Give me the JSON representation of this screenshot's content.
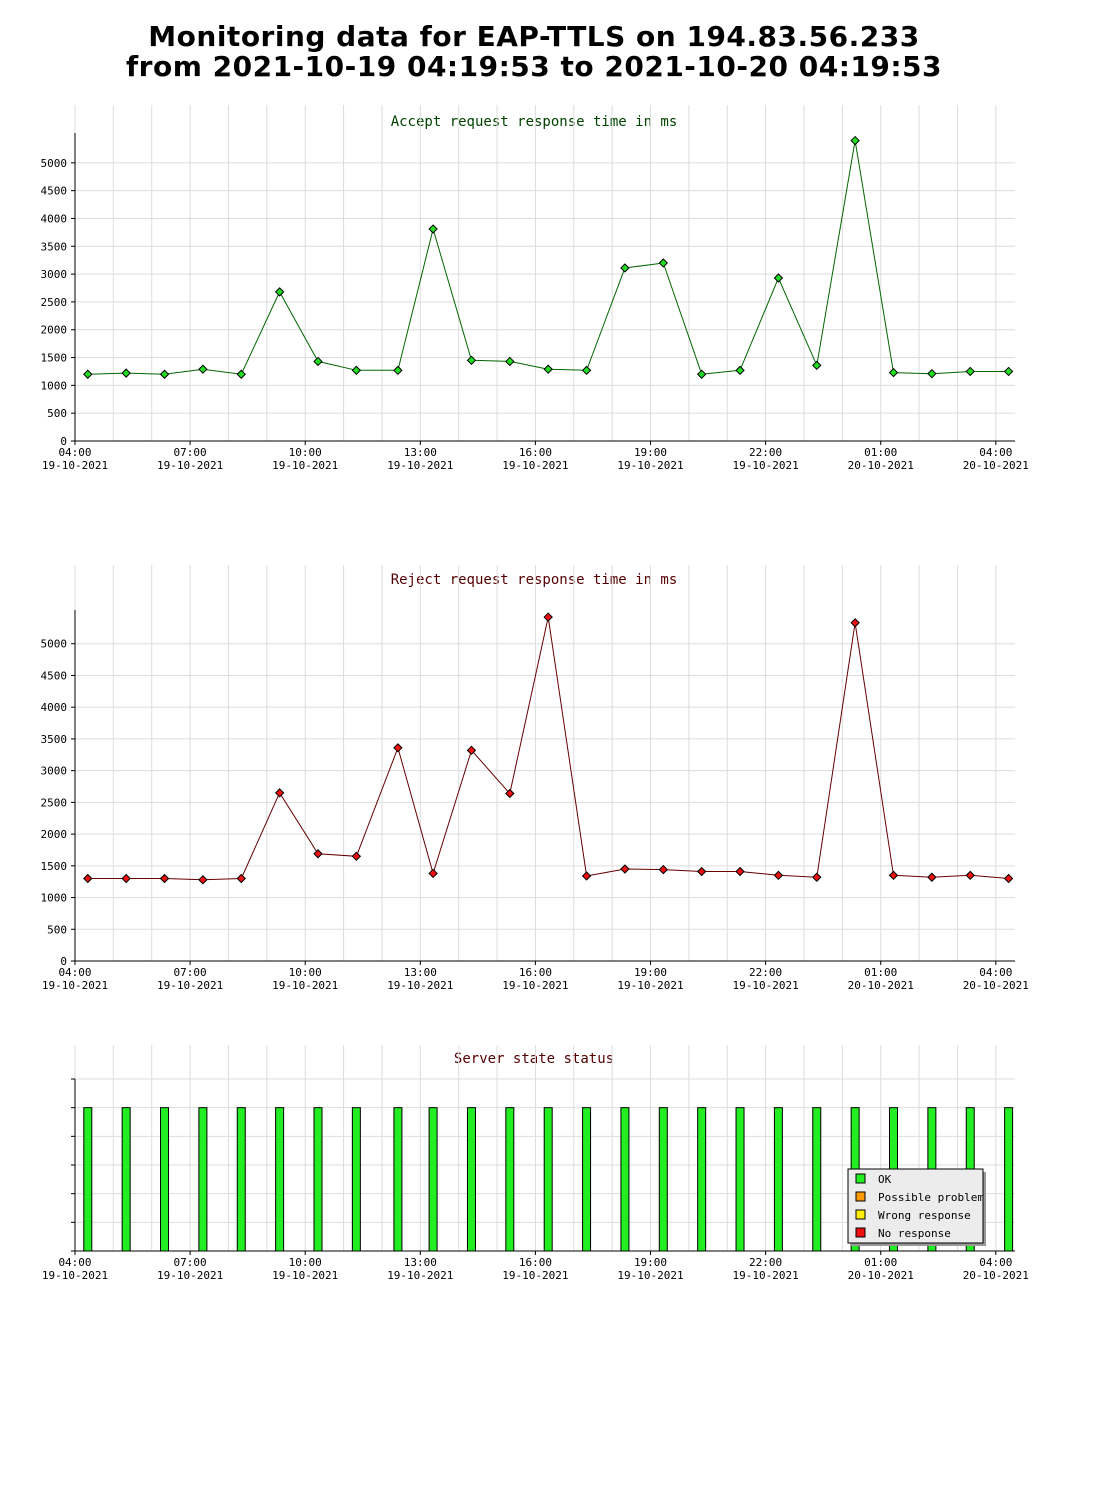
{
  "page": {
    "title_line1": "Monitoring data for EAP-TTLS on 194.83.56.233",
    "title_line2": "from 2021-10-19 04:19:53 to 2021-10-20 04:19:53"
  },
  "x_axis": {
    "tick_times": [
      "04:00",
      "07:00",
      "10:00",
      "13:00",
      "16:00",
      "19:00",
      "22:00",
      "01:00",
      "04:00"
    ],
    "tick_dates": [
      "19-10-2021",
      "19-10-2021",
      "19-10-2021",
      "19-10-2021",
      "19-10-2021",
      "19-10-2021",
      "19-10-2021",
      "20-10-2021",
      "20-10-2021"
    ]
  },
  "colors": {
    "accept_line": "#006600",
    "accept_marker": "#22dd22",
    "reject_line": "#660000",
    "reject_marker": "#ee1111",
    "accept_title": "#004400",
    "reject_title": "#550000",
    "status_title": "#550000",
    "ok": "#22ee22",
    "possible_problem": "#ff9900",
    "wrong_response": "#ffee00",
    "no_response": "#ee1111",
    "grid": "#dddddd"
  },
  "chart_data": [
    {
      "type": "line",
      "title": "Accept request response time in ms",
      "xlabel": "",
      "ylabel": "",
      "ylim": [
        0,
        5500
      ],
      "yticks": [
        0,
        500,
        1000,
        1500,
        2000,
        2500,
        3000,
        3500,
        4000,
        4500,
        5000
      ],
      "grid": true,
      "x": [
        "2021-10-19 04:20",
        "2021-10-19 05:20",
        "2021-10-19 06:20",
        "2021-10-19 07:20",
        "2021-10-19 08:20",
        "2021-10-19 09:20",
        "2021-10-19 10:20",
        "2021-10-19 11:20",
        "2021-10-19 12:25",
        "2021-10-19 13:20",
        "2021-10-19 14:20",
        "2021-10-19 15:20",
        "2021-10-19 16:20",
        "2021-10-19 17:20",
        "2021-10-19 18:20",
        "2021-10-19 19:20",
        "2021-10-19 20:20",
        "2021-10-19 21:20",
        "2021-10-19 22:20",
        "2021-10-19 23:20",
        "2021-10-20 00:20",
        "2021-10-20 01:20",
        "2021-10-20 02:20",
        "2021-10-20 03:20",
        "2021-10-20 04:20"
      ],
      "values": [
        1200,
        1220,
        1200,
        1290,
        1200,
        2680,
        1430,
        1270,
        1270,
        3810,
        1450,
        1430,
        1290,
        1270,
        3110,
        3200,
        1200,
        1270,
        2930,
        1360,
        5400,
        1230,
        1210,
        1250,
        1250
      ]
    },
    {
      "type": "line",
      "title": "Reject request response time in ms",
      "xlabel": "",
      "ylabel": "",
      "ylim": [
        0,
        5500
      ],
      "yticks": [
        0,
        500,
        1000,
        1500,
        2000,
        2500,
        3000,
        3500,
        4000,
        4500,
        5000
      ],
      "grid": true,
      "x": [
        "2021-10-19 04:20",
        "2021-10-19 05:20",
        "2021-10-19 06:20",
        "2021-10-19 07:20",
        "2021-10-19 08:20",
        "2021-10-19 09:20",
        "2021-10-19 10:20",
        "2021-10-19 11:20",
        "2021-10-19 12:25",
        "2021-10-19 13:20",
        "2021-10-19 14:20",
        "2021-10-19 15:20",
        "2021-10-19 16:20",
        "2021-10-19 17:20",
        "2021-10-19 18:20",
        "2021-10-19 19:20",
        "2021-10-19 20:20",
        "2021-10-19 21:20",
        "2021-10-19 22:20",
        "2021-10-19 23:20",
        "2021-10-20 00:20",
        "2021-10-20 01:20",
        "2021-10-20 02:20",
        "2021-10-20 03:20",
        "2021-10-20 04:20"
      ],
      "values": [
        1300,
        1300,
        1300,
        1280,
        1300,
        2650,
        1690,
        1650,
        3360,
        1380,
        3320,
        2640,
        5420,
        1340,
        1450,
        1440,
        1410,
        1410,
        1350,
        1320,
        5330,
        1350,
        1320,
        1350,
        1300
      ]
    },
    {
      "type": "bar",
      "title": "Server state status",
      "grid": true,
      "legend_position": "bottom-right",
      "legend": [
        "OK",
        "Possible problem",
        "Wrong response",
        "No response"
      ],
      "x": [
        "2021-10-19 04:20",
        "2021-10-19 05:20",
        "2021-10-19 06:20",
        "2021-10-19 07:20",
        "2021-10-19 08:20",
        "2021-10-19 09:20",
        "2021-10-19 10:20",
        "2021-10-19 11:20",
        "2021-10-19 12:25",
        "2021-10-19 13:20",
        "2021-10-19 14:20",
        "2021-10-19 15:20",
        "2021-10-19 16:20",
        "2021-10-19 17:20",
        "2021-10-19 18:20",
        "2021-10-19 19:20",
        "2021-10-19 20:20",
        "2021-10-19 21:20",
        "2021-10-19 22:20",
        "2021-10-19 23:20",
        "2021-10-20 00:20",
        "2021-10-20 01:20",
        "2021-10-20 02:20",
        "2021-10-20 03:20",
        "2021-10-20 04:20"
      ],
      "states": [
        "OK",
        "OK",
        "OK",
        "OK",
        "OK",
        "OK",
        "OK",
        "OK",
        "OK",
        "OK",
        "OK",
        "OK",
        "OK",
        "OK",
        "OK",
        "OK",
        "OK",
        "OK",
        "OK",
        "OK",
        "OK",
        "OK",
        "OK",
        "OK",
        "OK"
      ]
    }
  ]
}
